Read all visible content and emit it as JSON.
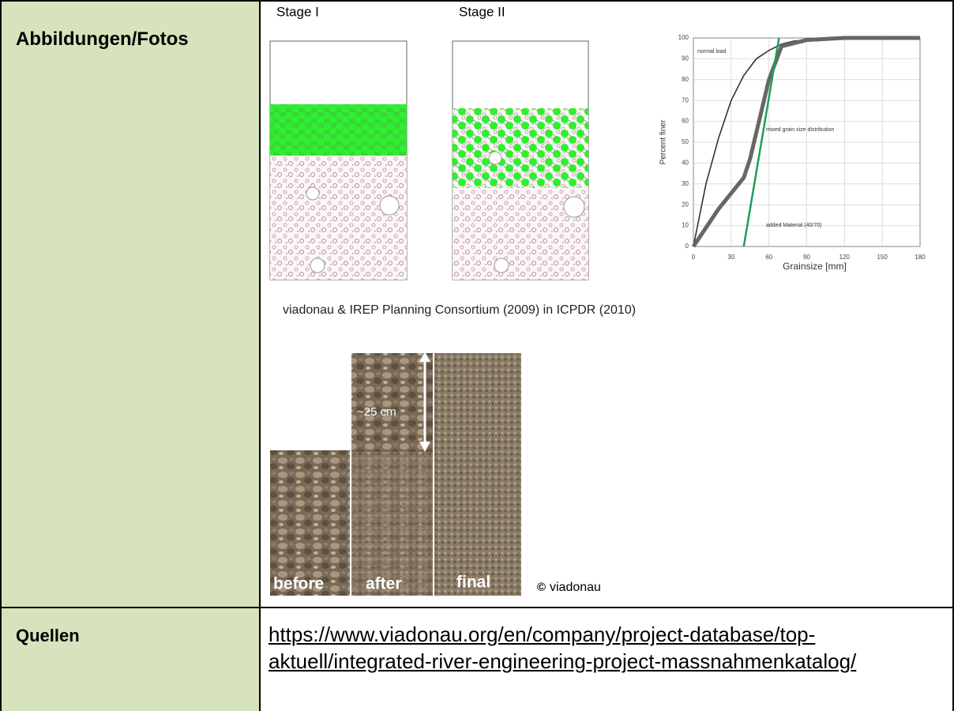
{
  "table": {
    "rows": [
      {
        "label": "Abbildungen/Fotos"
      },
      {
        "label": "Quellen",
        "link": "https://www.viadonau.org/en/company/project-database/top-aktuell/integrated-river-engineering-project-massnahmenkatalog/"
      }
    ]
  },
  "figures": {
    "stages": [
      "Stage I",
      "Stage II"
    ],
    "grain_chart": {
      "type": "line",
      "xlabel": "Grainsize [mm]",
      "ylabel": "Percent finer",
      "xlim": [
        0,
        180
      ],
      "xticks": [
        0,
        30,
        60,
        90,
        120,
        150,
        180
      ],
      "ylim": [
        0,
        100
      ],
      "yticks": [
        0,
        10,
        20,
        30,
        40,
        50,
        60,
        70,
        80,
        90,
        100
      ],
      "grid": true,
      "series": [
        {
          "name": "normal load",
          "color": "#333333",
          "x": [
            0,
            10,
            20,
            30,
            40,
            50,
            60,
            70,
            80,
            90,
            120,
            180
          ],
          "values": [
            0,
            30,
            52,
            70,
            82,
            90,
            94,
            97,
            98.5,
            99,
            100,
            100
          ]
        },
        {
          "name": "mixed grain size distribution",
          "color": "#666666",
          "x": [
            0,
            20,
            40,
            45,
            60,
            70,
            90,
            120,
            180
          ],
          "values": [
            0,
            18,
            33,
            42,
            80,
            96,
            99,
            100,
            100
          ]
        },
        {
          "name": "added Material (40/70)",
          "color": "#1e9e5a",
          "x": [
            40,
            68
          ],
          "values": [
            0,
            100
          ]
        }
      ]
    },
    "caption": "viadonau & IREP Planning Consortium (2009) in ICPDR (2010)",
    "photo": {
      "labels": [
        "before",
        "after",
        "final"
      ],
      "measure": "~25 cm",
      "credit_mark": "©",
      "credit": "viadonau"
    }
  }
}
